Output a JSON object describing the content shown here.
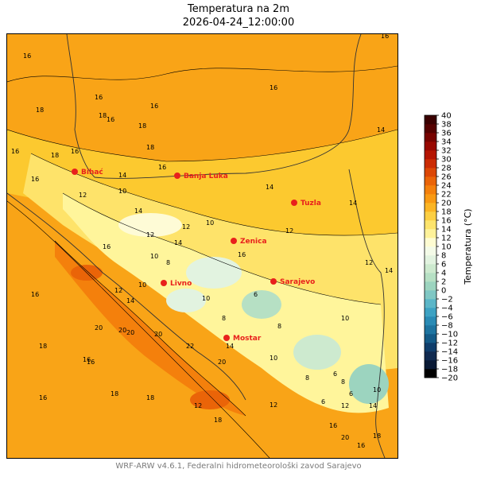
{
  "title": "Temperatura na 2m",
  "subtitle": "2026-04-24_12:00:00",
  "footer": "WRF-ARW v4.6.1, Federalni hidrometeorološki zavod Sarajevo",
  "colorbar": {
    "label": "Temperatura (°C)",
    "ticks": [
      -20,
      -18,
      -16,
      -14,
      -12,
      -10,
      -8,
      -6,
      -4,
      -2,
      0,
      2,
      4,
      6,
      8,
      10,
      12,
      14,
      16,
      18,
      20,
      22,
      24,
      26,
      28,
      30,
      32,
      34,
      36,
      38,
      40
    ],
    "colors": [
      "#000000",
      "#0a1a35",
      "#102a50",
      "#0f3d6b",
      "#145a87",
      "#1e74a0",
      "#2a8bb5",
      "#3da2c3",
      "#5bb6c8",
      "#7fc7c4",
      "#9cd4bf",
      "#b6e0c4",
      "#cdeacf",
      "#e2f3e0",
      "#f4fbe8",
      "#fefcd2",
      "#fef29a",
      "#fde46c",
      "#fccf43",
      "#fbb524",
      "#f99a13",
      "#f4800c",
      "#ea6408",
      "#dc4706",
      "#cb2b04",
      "#b51502",
      "#980801",
      "#770300",
      "#550100",
      "#3a0000"
    ]
  },
  "cities": [
    {
      "name": "Bihać"
    },
    {
      "name": "Banja Luka"
    },
    {
      "name": "Tuzla"
    },
    {
      "name": "Zenica"
    },
    {
      "name": "Sarajevo"
    },
    {
      "name": "Livno"
    },
    {
      "name": "Mostar"
    }
  ],
  "contour_labels": [
    "16",
    "16",
    "16",
    "18",
    "16",
    "18",
    "18",
    "16",
    "16",
    "16",
    "14",
    "16",
    "18",
    "18",
    "16",
    "14",
    "12",
    "10",
    "14",
    "16",
    "14",
    "12",
    "10",
    "8",
    "10",
    "12",
    "14",
    "10",
    "8",
    "6",
    "8",
    "10",
    "12",
    "14",
    "16",
    "18",
    "20",
    "20",
    "20",
    "20",
    "22",
    "20",
    "18",
    "16",
    "16",
    "18",
    "16",
    "18",
    "12",
    "10",
    "8",
    "6",
    "6",
    "12",
    "14",
    "16",
    "16",
    "14",
    "12",
    "10",
    "12",
    "14",
    "16",
    "20",
    "18",
    "16",
    "14",
    "12",
    "10",
    "8",
    "6"
  ],
  "colors": {
    "city_dot": "#e8201c",
    "city_text": "#e8201c",
    "footer_text": "#7a7a7a"
  }
}
